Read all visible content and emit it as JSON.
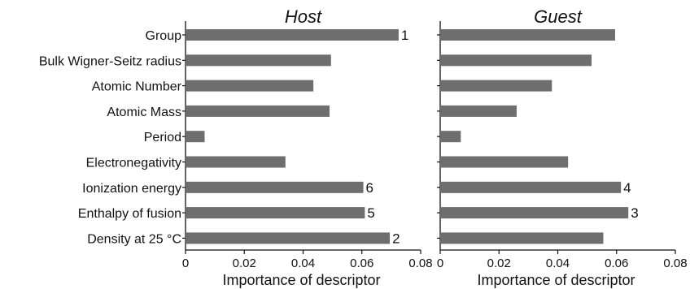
{
  "chart_data": {
    "type": "bar",
    "orientation": "horizontal",
    "categories": [
      "Group",
      "Bulk Wigner-Seitz radius",
      "Atomic Number",
      "Atomic Mass",
      "Period",
      "Electronegativity",
      "Ionization energy",
      "Enthalpy of fusion",
      "Density at 25 °C"
    ],
    "xlabel": "Importance of descriptor",
    "xlim": [
      0,
      0.08
    ],
    "xticks": [
      "0",
      "0.02",
      "0.04",
      "0.06",
      "0.08"
    ],
    "bar_color": "#6e6e6e",
    "panels": [
      {
        "title": "Host",
        "values": [
          0.0725,
          0.0495,
          0.0435,
          0.049,
          0.0065,
          0.034,
          0.0605,
          0.061,
          0.0695
        ],
        "ranks": [
          "1",
          "",
          "",
          "",
          "",
          "",
          "6",
          "5",
          "2"
        ]
      },
      {
        "title": "Guest",
        "values": [
          0.0595,
          0.0515,
          0.038,
          0.026,
          0.007,
          0.0435,
          0.0615,
          0.064,
          0.0555
        ],
        "ranks": [
          "",
          "",
          "",
          "",
          "",
          "",
          "4",
          "3",
          ""
        ]
      }
    ]
  }
}
